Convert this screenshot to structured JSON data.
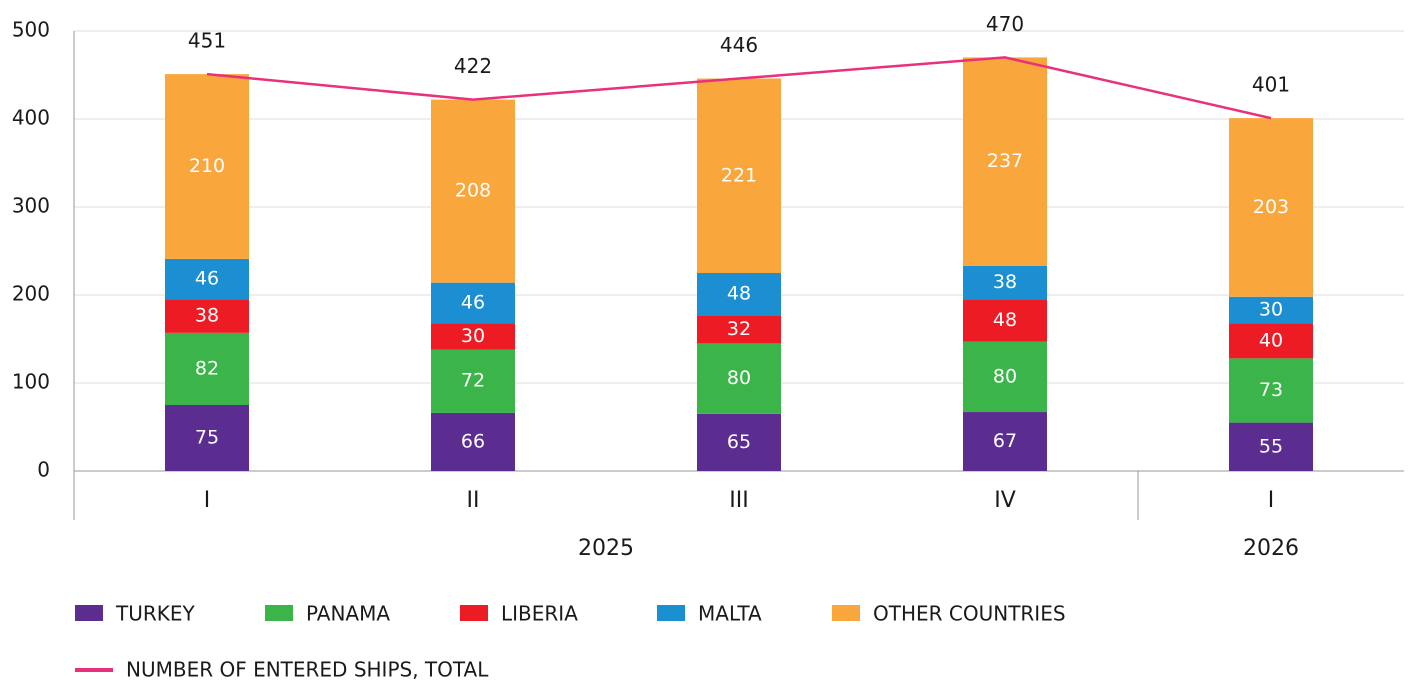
{
  "chart_data": {
    "type": "bar",
    "stacked": true,
    "categories": [
      "I",
      "II",
      "III",
      "IV",
      "I"
    ],
    "groups": [
      {
        "label": "2025",
        "count": 4
      },
      {
        "label": "2026",
        "count": 1
      }
    ],
    "series": [
      {
        "name": "TURKEY",
        "color": "#5c2d91",
        "values": [
          75,
          66,
          65,
          67,
          55
        ]
      },
      {
        "name": "PANAMA",
        "color": "#3bb54a",
        "values": [
          82,
          72,
          80,
          80,
          73
        ]
      },
      {
        "name": "LIBERIA",
        "color": "#ed1c24",
        "values": [
          38,
          30,
          32,
          48,
          40
        ]
      },
      {
        "name": "MALTA",
        "color": "#1b8fd2",
        "values": [
          46,
          46,
          48,
          38,
          30
        ]
      },
      {
        "name": "OTHER COUNTRIES",
        "color": "#f9a63c",
        "values": [
          210,
          208,
          221,
          237,
          203
        ]
      },
      {
        "name": "NUMBER OF ENTERED SHIPS, TOTAL",
        "color": "#e8317a",
        "type": "line",
        "values": [
          451,
          422,
          446,
          470,
          401
        ]
      }
    ],
    "ylim": [
      0,
      500
    ],
    "yticks": [
      0,
      100,
      200,
      300,
      400,
      500
    ],
    "grid": true
  }
}
